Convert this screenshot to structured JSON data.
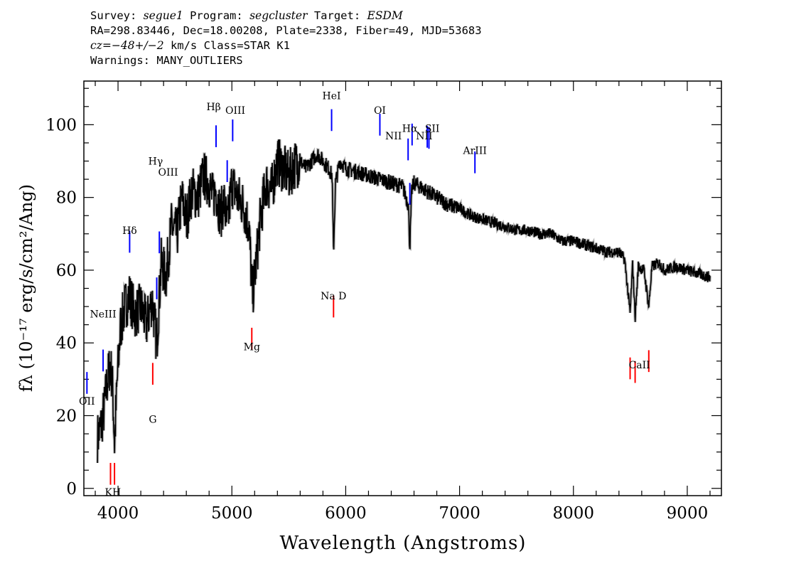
{
  "header": {
    "line1": {
      "survey_label": "Survey: ",
      "survey": "segue1",
      "program_label": " Program: ",
      "program": "segcluster",
      "target_label": " Target: ",
      "target": "ESDM"
    },
    "line2": "RA=298.83446, Dec=18.00208, Plate=2338, Fiber=49, MJD=53683",
    "line3": {
      "cz": "cz=−48+/−2",
      "rest": " km/s Class=STAR K1"
    },
    "line4": "Warnings: MANY_OUTLIERS"
  },
  "chart_data": {
    "type": "line",
    "xlabel": "Wavelength (Angstroms)",
    "ylabel": "fλ (10⁻¹⁷ erg/s/cm²/Ang)",
    "xlim": [
      3700,
      9300
    ],
    "ylim": [
      -2,
      112
    ],
    "x_ticks": [
      4000,
      5000,
      6000,
      7000,
      8000,
      9000
    ],
    "y_ticks": [
      0,
      20,
      40,
      60,
      80,
      100
    ],
    "grid": false,
    "series": [
      {
        "color": "#000000",
        "x": [
          3820,
          3850,
          3880,
          3900,
          3930,
          3950,
          3970,
          3990,
          4020,
          4060,
          4100,
          4150,
          4200,
          4250,
          4300,
          4340,
          4380,
          4420,
          4470,
          4520,
          4560,
          4600,
          4650,
          4700,
          4750,
          4800,
          4830,
          4860,
          4900,
          4930,
          4960,
          5000,
          5050,
          5100,
          5150,
          5180,
          5200,
          5250,
          5300,
          5350,
          5400,
          5450,
          5500,
          5550,
          5600,
          5650,
          5700,
          5750,
          5800,
          5850,
          5880,
          5893,
          5910,
          5950,
          6000,
          6100,
          6200,
          6300,
          6400,
          6500,
          6550,
          6563,
          6580,
          6600,
          6700,
          6800,
          6900,
          7000,
          7100,
          7200,
          7300,
          7400,
          7500,
          7600,
          7700,
          7800,
          7900,
          8000,
          8100,
          8200,
          8300,
          8400,
          8450,
          8498,
          8520,
          8542,
          8570,
          8620,
          8662,
          8690,
          8750,
          8800,
          8900,
          9000,
          9100,
          9200
        ],
        "y": [
          14,
          17,
          22,
          28,
          34,
          30,
          12,
          28,
          44,
          50,
          53,
          48,
          50,
          45,
          52,
          40,
          62,
          58,
          72,
          70,
          80,
          74,
          82,
          80,
          86,
          84,
          80,
          82,
          75,
          79,
          72,
          84,
          80,
          78,
          72,
          53,
          58,
          74,
          84,
          82,
          90,
          88,
          86,
          89,
          90,
          88,
          90,
          92,
          90,
          88,
          86,
          65,
          84,
          90,
          88,
          87,
          86,
          85,
          84,
          83,
          78,
          66,
          82,
          84,
          82,
          80,
          78,
          77,
          75,
          74,
          73,
          72,
          71,
          71,
          70,
          70,
          68,
          68,
          67,
          66,
          65,
          65,
          63,
          48,
          62,
          47,
          61,
          60,
          50,
          61,
          62,
          60,
          61,
          60,
          59,
          58
        ]
      }
    ],
    "lines": [
      {
        "label": "OII",
        "x": 3727,
        "color": "#0000ff"
      },
      {
        "label": "NeIII",
        "x": 3869,
        "color": "#0000ff"
      },
      {
        "label": "K",
        "x": 3934,
        "color": "#ff0000"
      },
      {
        "label": "H",
        "x": 3969,
        "color": "#ff0000"
      },
      {
        "label": "Hδ",
        "x": 4102,
        "color": "#0000ff"
      },
      {
        "label": "Hγ",
        "x": 4340,
        "color": "#0000ff"
      },
      {
        "label": "G",
        "x": 4305,
        "color": "#ff0000"
      },
      {
        "label": "OIII",
        "x": 4363,
        "color": "#0000ff"
      },
      {
        "label": "Hβ",
        "x": 4861,
        "color": "#0000ff"
      },
      {
        "label": "OIII",
        "x": 4959,
        "color": "#0000ff"
      },
      {
        "label": "OIII",
        "x": 5007,
        "color": "#0000ff"
      },
      {
        "label": "Mg",
        "x": 5175,
        "color": "#ff0000"
      },
      {
        "label": "HeI",
        "x": 5876,
        "color": "#0000ff"
      },
      {
        "label": "Na D",
        "x": 5893,
        "color": "#ff0000"
      },
      {
        "label": "OI",
        "x": 6300,
        "color": "#0000ff"
      },
      {
        "label": "NII",
        "x": 6548,
        "color": "#0000ff"
      },
      {
        "label": "Hα",
        "x": 6563,
        "color": "#0000ff"
      },
      {
        "label": "NII",
        "x": 6583,
        "color": "#0000ff"
      },
      {
        "label": "SII",
        "x": 6716,
        "color": "#0000ff"
      },
      {
        "label": "SII",
        "x": 6731,
        "color": "#0000ff"
      },
      {
        "label": "ArIII",
        "x": 7135,
        "color": "#0000ff"
      },
      {
        "label": "CaII",
        "x": 8498,
        "color": "#ff0000"
      },
      {
        "label": "CaII",
        "x": 8542,
        "color": "#ff0000"
      },
      {
        "label": "CaII",
        "x": 8662,
        "color": "#ff0000"
      }
    ],
    "line_labels": [
      {
        "text": "OII",
        "x": 3727,
        "y": 23
      },
      {
        "text": "NeIII",
        "x": 3869,
        "y": 47
      },
      {
        "text": "KH",
        "x": 3955,
        "y": -2
      },
      {
        "text": "Hδ",
        "x": 4102,
        "y": 70
      },
      {
        "text": "Hγ",
        "x": 4330,
        "y": 89
      },
      {
        "text": "G",
        "x": 4305,
        "y": 18
      },
      {
        "text": "OIII",
        "x": 4440,
        "y": 86
      },
      {
        "text": "Hβ",
        "x": 4840,
        "y": 104
      },
      {
        "text": "OIII",
        "x": 5030,
        "y": 103
      },
      {
        "text": "Mg",
        "x": 5175,
        "y": 38
      },
      {
        "text": "HeI",
        "x": 5876,
        "y": 107
      },
      {
        "text": "Na  D",
        "x": 5893,
        "y": 52
      },
      {
        "text": "OI",
        "x": 6300,
        "y": 103
      },
      {
        "text": "NII",
        "x": 6420,
        "y": 96
      },
      {
        "text": "Hα",
        "x": 6563,
        "y": 98
      },
      {
        "text": "NII",
        "x": 6690,
        "y": 96
      },
      {
        "text": "SII",
        "x": 6760,
        "y": 98
      },
      {
        "text": "ArIII",
        "x": 7135,
        "y": 92
      },
      {
        "text": "CaII",
        "x": 8580,
        "y": 33
      }
    ]
  }
}
